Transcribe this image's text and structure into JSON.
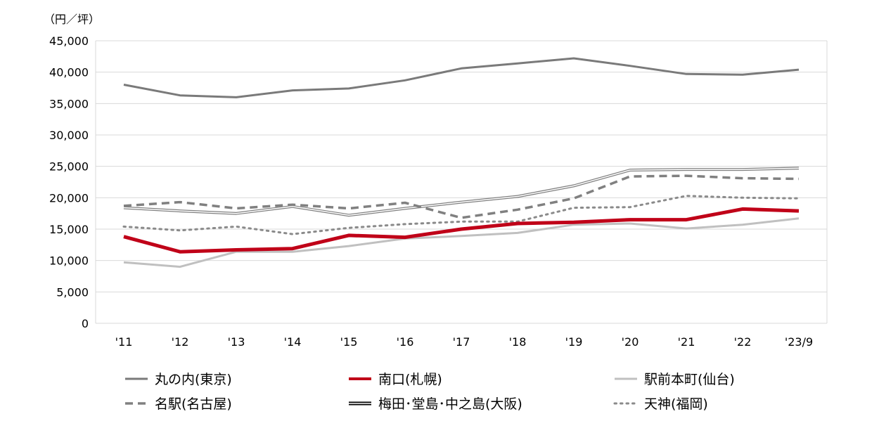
{
  "chart_data": {
    "type": "line",
    "unit_label": "（円／坪）",
    "categories": [
      "'11",
      "'12",
      "'13",
      "'14",
      "'15",
      "'16",
      "'17",
      "'18",
      "'19",
      "'20",
      "'21",
      "'22",
      "'23/9"
    ],
    "ylim": [
      0,
      45000
    ],
    "yticks": [
      0,
      5000,
      10000,
      15000,
      20000,
      25000,
      30000,
      35000,
      40000,
      45000
    ],
    "ytick_labels": [
      "0",
      "5,000",
      "10,000",
      "15,000",
      "20,000",
      "25,000",
      "30,000",
      "35,000",
      "40,000",
      "45,000"
    ],
    "grid": true,
    "legend_position": "bottom",
    "series": [
      {
        "name": "丸の内(東京)",
        "color": "#7a7a7a",
        "style": "solid",
        "values": [
          38000,
          36300,
          36000,
          37100,
          37400,
          38700,
          40600,
          41400,
          42200,
          41000,
          39700,
          39600,
          40400
        ]
      },
      {
        "name": "南口(札幌)",
        "color": "#c00018",
        "style": "bold",
        "values": [
          13800,
          11400,
          11700,
          11900,
          14000,
          13700,
          15000,
          15900,
          16100,
          16500,
          16500,
          18200,
          17900
        ]
      },
      {
        "name": "駅前本町(仙台)",
        "color": "#c0c0c0",
        "style": "solid",
        "values": [
          9700,
          9000,
          11400,
          11400,
          12300,
          13500,
          13900,
          14400,
          15700,
          15900,
          15100,
          15700,
          16700
        ]
      },
      {
        "name": "名駅(名古屋)",
        "color": "#808080",
        "style": "dashed",
        "values": [
          18700,
          19300,
          18300,
          18900,
          18300,
          19200,
          16800,
          18100,
          19900,
          23400,
          23500,
          23100,
          23000
        ]
      },
      {
        "name": "梅田･堂島･中之島(大阪)",
        "color": "#808080",
        "style": "double",
        "values": [
          18400,
          17900,
          17500,
          18600,
          17200,
          18300,
          19300,
          20200,
          21900,
          24400,
          24500,
          24500,
          24700
        ]
      },
      {
        "name": "天神(福岡)",
        "color": "#8a8a8a",
        "style": "dotted",
        "values": [
          15400,
          14800,
          15400,
          14200,
          15200,
          15800,
          16200,
          16200,
          18400,
          18500,
          20300,
          20000,
          19900
        ]
      }
    ]
  }
}
